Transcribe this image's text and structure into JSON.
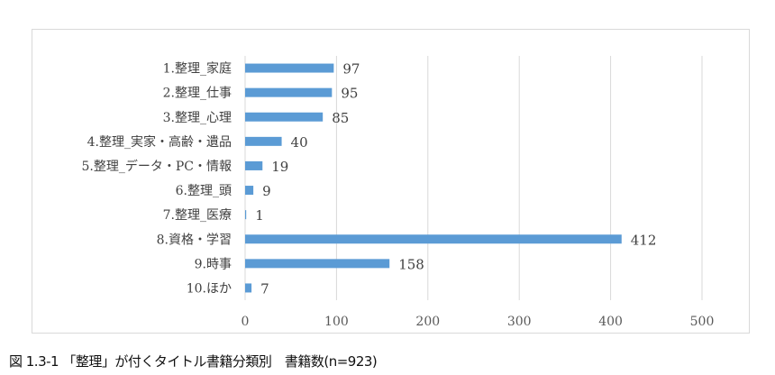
{
  "chart_data": {
    "type": "bar",
    "orientation": "horizontal",
    "categories": [
      "1.整理_家庭",
      "2.整理_仕事",
      "3.整理_心理",
      "4.整理_実家・高齢・遺品",
      "5.整理_データ・PC・情報",
      "6.整理_頭",
      "7.整理_医療",
      "8.資格・学習",
      "9.時事",
      "10.ほか"
    ],
    "values": [
      97,
      95,
      85,
      40,
      19,
      9,
      1,
      412,
      158,
      7
    ],
    "xlim": [
      0,
      500
    ],
    "xticks": [
      "0",
      "100",
      "200",
      "300",
      "400",
      "500"
    ],
    "grid": true,
    "bar_color": "#5b9bd5",
    "title": "",
    "xlabel": "",
    "ylabel": ""
  },
  "caption": "図 1.3-1 「整理」が付くタイトル書籍分類別　書籍数(n=923)"
}
